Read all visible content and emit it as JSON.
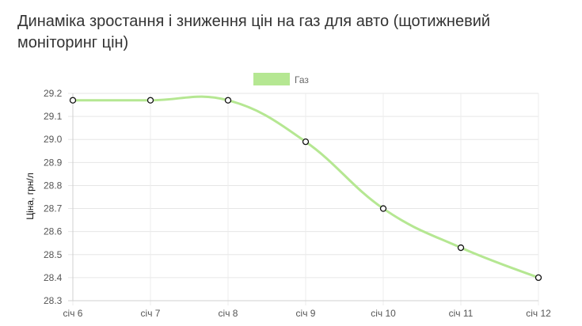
{
  "chart_data": {
    "type": "line",
    "title": "Динаміка зростання і зниження цін на газ для авто (щотижневий моніторинг цін)",
    "xlabel": "",
    "ylabel": "Ціна, грн/л",
    "categories": [
      "січ 6",
      "січ 7",
      "січ 8",
      "січ 9",
      "січ 10",
      "січ 11",
      "січ 12"
    ],
    "series": [
      {
        "name": "Газ",
        "values": [
          29.17,
          29.17,
          29.17,
          28.99,
          28.7,
          28.53,
          28.4
        ]
      }
    ],
    "ylim": [
      28.3,
      29.2
    ],
    "yticks": [
      "29.2",
      "29.1",
      "29.0",
      "28.9",
      "28.8",
      "28.7",
      "28.6",
      "28.5",
      "28.4",
      "28.3"
    ],
    "grid": true,
    "legend_position": "top-center",
    "series_color": "#b5e792"
  }
}
